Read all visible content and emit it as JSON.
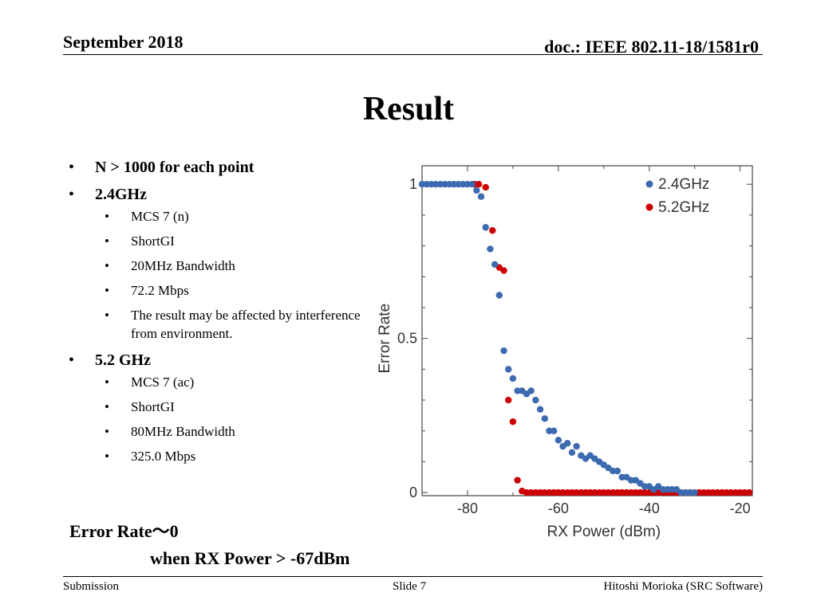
{
  "header": {
    "date": "September 2018",
    "doc": "doc.: IEEE 802.11-18/1581r0"
  },
  "title": "Result",
  "bullets": {
    "n": "N > 1000 for each point",
    "g24": {
      "heading": "2.4GHz",
      "items": [
        "MCS 7 (n)",
        "ShortGI",
        "20MHz Bandwidth",
        "72.2 Mbps",
        "The result may be affected by interference from environment."
      ]
    },
    "g52": {
      "heading": "5.2 GHz",
      "items": [
        "MCS 7 (ac)",
        "ShortGI",
        "80MHz Bandwidth",
        "325.0 Mbps"
      ]
    }
  },
  "summary": {
    "line1": "Error Rate～0",
    "line2": "when RX Power > -67dBm"
  },
  "footer": {
    "left": "Submission",
    "middle": "Slide 7",
    "right": "Hitoshi Morioka (SRC Software)"
  },
  "colors": {
    "series_24": "#3c6ab0",
    "series_52": "#cc0000"
  },
  "chart_data": {
    "type": "scatter",
    "xlabel": "RX Power (dBm)",
    "ylabel": "Error Rate",
    "xlim": [
      -90,
      -17.3
    ],
    "ylim": [
      -0.01,
      1.06
    ],
    "xticks": [
      -80,
      -60,
      -40,
      -20
    ],
    "yticks": [
      0,
      0.5,
      1
    ],
    "ytick_labels": [
      "0",
      "0.5",
      "1"
    ],
    "legend_position": "top-right",
    "series": [
      {
        "name": "2.4GHz",
        "x": [
          -90,
          -89,
          -88,
          -87,
          -86,
          -85,
          -84,
          -83,
          -82,
          -81,
          -80,
          -79,
          -78,
          -77,
          -76,
          -75,
          -74,
          -73,
          -72,
          -71,
          -70,
          -69,
          -68,
          -67,
          -66,
          -65,
          -64,
          -63,
          -62,
          -61,
          -60,
          -59,
          -58,
          -57,
          -56,
          -55,
          -54,
          -53,
          -52,
          -51,
          -50,
          -49,
          -48,
          -47,
          -46,
          -45,
          -44,
          -43,
          -42,
          -41,
          -40,
          -39,
          -38,
          -37,
          -36,
          -35,
          -34,
          -33,
          -32,
          -31,
          -30
        ],
        "y": [
          1,
          1,
          1,
          1,
          1,
          1,
          1,
          1,
          1,
          1,
          1,
          1,
          0.98,
          0.96,
          0.86,
          0.79,
          0.74,
          0.64,
          0.46,
          0.4,
          0.37,
          0.33,
          0.33,
          0.32,
          0.33,
          0.3,
          0.27,
          0.24,
          0.2,
          0.2,
          0.17,
          0.15,
          0.16,
          0.13,
          0.15,
          0.12,
          0.11,
          0.12,
          0.11,
          0.1,
          0.09,
          0.08,
          0.07,
          0.07,
          0.05,
          0.05,
          0.04,
          0.04,
          0.03,
          0.02,
          0.02,
          0.01,
          0.02,
          0.01,
          0.01,
          0.01,
          0.01,
          0,
          0,
          0,
          0
        ]
      },
      {
        "name": "5.2GHz",
        "x": [
          -78.5,
          -77.5,
          -76,
          -74.5,
          -73,
          -72,
          -71,
          -70,
          -69,
          -68,
          -67,
          -66,
          -65,
          -64,
          -63,
          -62,
          -61,
          -60,
          -59,
          -58,
          -57,
          -56,
          -55,
          -54,
          -53,
          -52,
          -51,
          -50,
          -49,
          -48,
          -47,
          -46,
          -45,
          -44,
          -43,
          -42,
          -41,
          -40,
          -39,
          -38,
          -37,
          -36,
          -35,
          -34,
          -33,
          -32,
          -31,
          -30,
          -29,
          -28,
          -27,
          -26,
          -25,
          -24,
          -23,
          -22,
          -21,
          -20,
          -19,
          -18
        ],
        "y": [
          1,
          1,
          0.99,
          0.85,
          0.73,
          0.72,
          0.3,
          0.23,
          0.04,
          0.005,
          0,
          0,
          0,
          0,
          0,
          0,
          0,
          0,
          0,
          0,
          0,
          0,
          0,
          0,
          0,
          0,
          0,
          0,
          0,
          0,
          0,
          0,
          0,
          0,
          0,
          0,
          0,
          0,
          0,
          0,
          0,
          0,
          0,
          0,
          0,
          0,
          0,
          0,
          0,
          0,
          0,
          0,
          0,
          0,
          0,
          0,
          0,
          0,
          0,
          0
        ]
      }
    ]
  }
}
